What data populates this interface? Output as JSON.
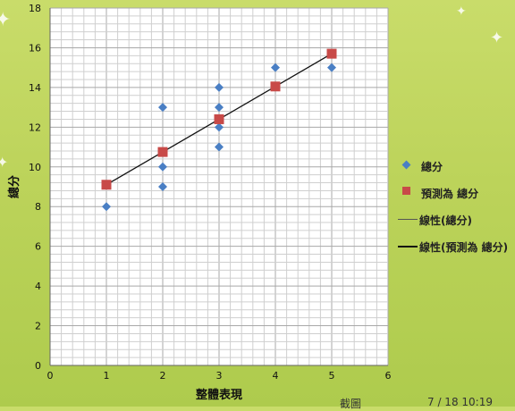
{
  "chart_data": {
    "type": "scatter",
    "xlabel": "整體表現",
    "ylabel": "總分",
    "xlim": [
      0,
      6
    ],
    "ylim": [
      0,
      18
    ],
    "x_ticks": [
      0,
      1,
      2,
      3,
      4,
      5,
      6
    ],
    "y_ticks": [
      0,
      2,
      4,
      6,
      8,
      10,
      12,
      14,
      16,
      18
    ],
    "grid": true,
    "legend_position": "right",
    "series": [
      {
        "name": "總分",
        "marker": "diamond",
        "color": "#4a7fc4",
        "points": [
          [
            1,
            8
          ],
          [
            2,
            13
          ],
          [
            2,
            10
          ],
          [
            2,
            9
          ],
          [
            3,
            14
          ],
          [
            3,
            13
          ],
          [
            3,
            12
          ],
          [
            3,
            11
          ],
          [
            4,
            15
          ],
          [
            5,
            15
          ]
        ]
      },
      {
        "name": "預測為 總分",
        "marker": "square",
        "color": "#c84a48",
        "points": [
          [
            1,
            9.1
          ],
          [
            2,
            10.75
          ],
          [
            3,
            12.4
          ],
          [
            4,
            14.05
          ],
          [
            5,
            15.7
          ]
        ]
      },
      {
        "name": "線性(總分)",
        "kind": "line",
        "color": "#555555",
        "points": []
      },
      {
        "name": "線性(預測為 總分)",
        "kind": "line",
        "color": "#111111",
        "points": [
          [
            1,
            9.1
          ],
          [
            5,
            15.7
          ]
        ]
      }
    ]
  },
  "legend": {
    "item1": "總分",
    "item2": "預測為 總分",
    "item3": "線性(總分)",
    "item4": "線性(預測為 總分)"
  },
  "footer": {
    "left": "截圖",
    "right": "7 / 18 10:19"
  }
}
